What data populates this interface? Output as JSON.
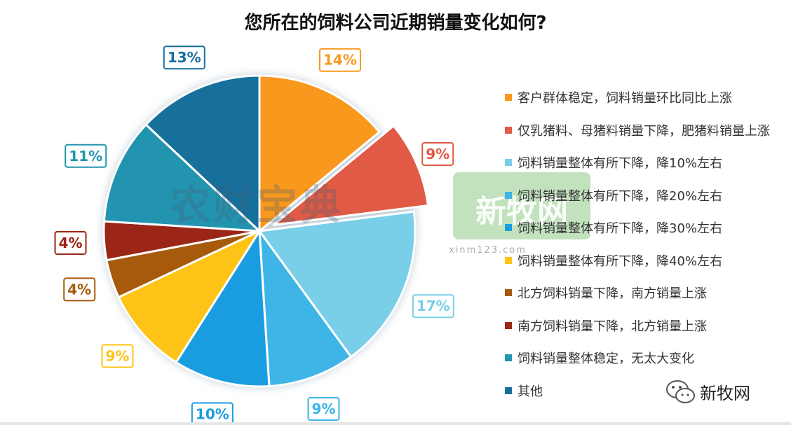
{
  "chart_data": {
    "type": "pie",
    "title": "您所在的饲料公司近期销量变化如何?",
    "slices": [
      {
        "label": "客户群体稳定，饲料销量环比同比上涨",
        "value": 14,
        "display": "14%",
        "color": "#F8981D"
      },
      {
        "label": "仅乳猪料、母猪料销量下降，肥猪料销量上涨",
        "value": 9,
        "display": "9%",
        "color": "#E05A45",
        "exploded": true
      },
      {
        "label": "饲料销量整体有所下降，降10%左右",
        "value": 17,
        "display": "17%",
        "color": "#79CFE7"
      },
      {
        "label": "饲料销量整体有所下降，降20%左右",
        "value": 9,
        "display": "9%",
        "color": "#3EB5E6"
      },
      {
        "label": "饲料销量整体有所下降，降30%左右",
        "value": 10,
        "display": "10%",
        "color": "#1A9DE0"
      },
      {
        "label": "饲料销量整体有所下降，降40%左右",
        "value": 9,
        "display": "9%",
        "color": "#FDC316"
      },
      {
        "label": "北方饲料销量下降，南方销量上涨",
        "value": 4,
        "display": "4%",
        "color": "#A75A0C"
      },
      {
        "label": "南方饲料销量下降，北方销量上涨",
        "value": 4,
        "display": "4%",
        "color": "#9B2516"
      },
      {
        "label": "饲料销量整体稳定，无太大变化",
        "value": 11,
        "display": "11%",
        "color": "#2394AF"
      },
      {
        "label": "其他",
        "value": 13,
        "display": "13%",
        "color": "#176F9C"
      }
    ],
    "legend_position": "right",
    "start_angle": "12 o'clock, clockwise"
  },
  "watermarks": {
    "left": "农财宝典",
    "right": "新牧网",
    "sub": "xinm123.com"
  },
  "brand": {
    "text": "新牧网",
    "icon": "wechat-icon"
  }
}
